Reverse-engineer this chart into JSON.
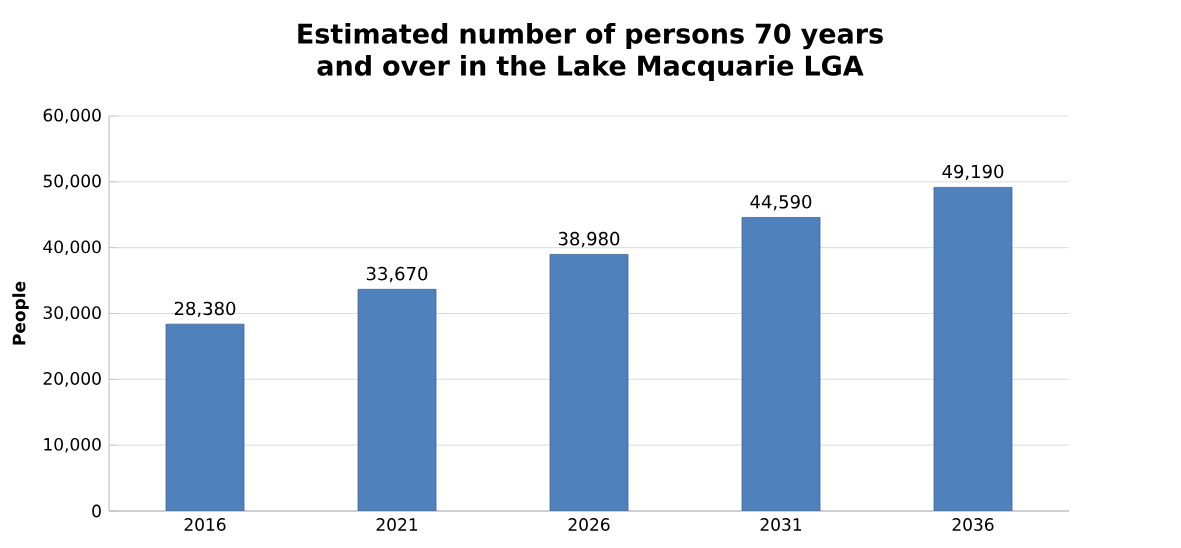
{
  "chart_data": {
    "type": "bar",
    "title": "Estimated number of persons 70 years and over in the Lake Macquarie LGA",
    "ylabel": "People",
    "categories": [
      "2016",
      "2021",
      "2026",
      "2031",
      "2036"
    ],
    "values": [
      28380,
      33670,
      38980,
      44590,
      49190
    ],
    "color": "#4f81bd",
    "ylim": [
      0,
      60000
    ],
    "yticks": [
      {
        "value": 0,
        "label": "0"
      },
      {
        "value": 10000,
        "label": "10,000"
      },
      {
        "value": 20000,
        "label": "20,000"
      },
      {
        "value": 30000,
        "label": "30,000"
      },
      {
        "value": 40000,
        "label": "40,000"
      },
      {
        "value": 50000,
        "label": "50,000"
      },
      {
        "value": 60000,
        "label": "60,000"
      }
    ],
    "value_labels": [
      "28,380",
      "33,670",
      "38,980",
      "44,590",
      "49,190"
    ],
    "grid": "y"
  }
}
